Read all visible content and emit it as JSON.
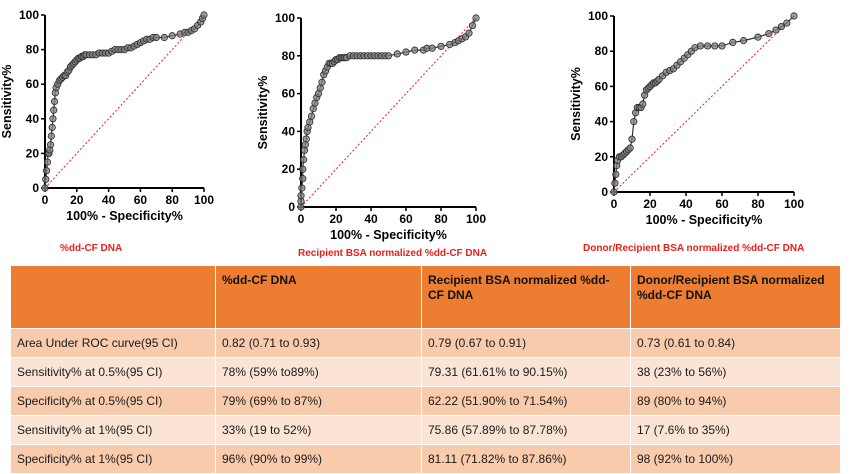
{
  "chart_data": [
    {
      "type": "line",
      "subtype": "roc",
      "title": "",
      "xlabel": "100% - Specificity%",
      "ylabel": "Sensitivity%",
      "xlim": [
        0,
        100
      ],
      "ylim": [
        0,
        100
      ],
      "xticks": [
        0,
        20,
        40,
        60,
        80,
        100
      ],
      "yticks": [
        0,
        20,
        40,
        60,
        80,
        100
      ],
      "reference_line": true,
      "x": [
        0,
        0.5,
        1,
        1.5,
        2,
        2.5,
        3,
        3.5,
        4,
        4.5,
        5,
        5.5,
        6,
        6.5,
        7,
        8,
        9,
        10,
        11,
        12,
        13,
        14,
        15,
        16,
        17,
        18,
        19,
        20,
        21,
        22,
        23,
        24,
        25,
        26,
        28,
        30,
        32,
        34,
        36,
        38,
        40,
        42,
        44,
        46,
        48,
        50,
        52,
        54,
        56,
        58,
        60,
        62,
        64,
        66,
        68,
        70,
        75,
        80,
        85,
        88,
        90,
        92,
        94,
        96,
        98,
        99,
        100
      ],
      "y": [
        0,
        5,
        10,
        15,
        20,
        20,
        22,
        25,
        30,
        35,
        40,
        45,
        50,
        55,
        58,
        60,
        62,
        63,
        64,
        65,
        65,
        67,
        68,
        70,
        71,
        72,
        73,
        74,
        75,
        75,
        76,
        76,
        77,
        77,
        77,
        77,
        77,
        78,
        78,
        78,
        78,
        79,
        80,
        80,
        80,
        80,
        81,
        81,
        82,
        83,
        84,
        85,
        86,
        86,
        87,
        87,
        87,
        88,
        89,
        90,
        90,
        91,
        92,
        94,
        96,
        98,
        100
      ]
    },
    {
      "type": "line",
      "subtype": "roc",
      "title": "",
      "xlabel": "100% - Specificity%",
      "ylabel": "Sensitivity%",
      "xlim": [
        0,
        100
      ],
      "ylim": [
        0,
        100
      ],
      "xticks": [
        0,
        20,
        40,
        60,
        80,
        100
      ],
      "yticks": [
        0,
        20,
        40,
        60,
        80,
        100
      ],
      "reference_line": true,
      "x": [
        0,
        0,
        0,
        0.5,
        1,
        1,
        1.5,
        2,
        2.5,
        3,
        3.5,
        4,
        5,
        6,
        7,
        8,
        9,
        10,
        11,
        12,
        13,
        14,
        15,
        16,
        17,
        18,
        19,
        20,
        21,
        22,
        23,
        24,
        25,
        26,
        28,
        30,
        32,
        34,
        36,
        38,
        40,
        42,
        44,
        46,
        48,
        50,
        55,
        60,
        65,
        70,
        72,
        75,
        80,
        85,
        88,
        90,
        92,
        94,
        96,
        98,
        100
      ],
      "y": [
        0,
        3,
        6,
        10,
        15,
        20,
        25,
        30,
        33,
        36,
        40,
        42,
        45,
        48,
        52,
        55,
        58,
        60,
        63,
        66,
        70,
        72,
        74,
        76,
        76,
        76,
        77,
        78,
        78,
        79,
        79,
        79,
        79,
        79,
        80,
        80,
        80,
        80,
        80,
        80,
        80,
        80,
        80,
        80,
        80,
        80,
        81,
        82,
        83,
        83,
        84,
        84,
        85,
        86,
        87,
        88,
        89,
        90,
        92,
        96,
        100
      ]
    },
    {
      "type": "line",
      "subtype": "roc",
      "title": "",
      "xlabel": "100% - Specificity%",
      "ylabel": "Sensitivity%",
      "xlim": [
        0,
        100
      ],
      "ylim": [
        0,
        100
      ],
      "xticks": [
        0,
        20,
        40,
        60,
        80,
        100
      ],
      "yticks": [
        0,
        20,
        40,
        60,
        80,
        100
      ],
      "reference_line": true,
      "x": [
        0,
        0.5,
        1,
        1.5,
        2,
        3,
        4,
        5,
        6,
        7,
        8,
        9,
        10,
        11,
        12,
        13,
        14,
        15,
        16,
        17,
        18,
        19,
        20,
        21,
        22,
        23,
        24,
        25,
        27,
        29,
        31,
        33,
        35,
        37,
        39,
        41,
        43,
        45,
        48,
        52,
        56,
        60,
        66,
        72,
        80,
        86,
        90,
        93,
        96,
        100
      ],
      "y": [
        0,
        5,
        10,
        15,
        18,
        20,
        20,
        21,
        22,
        23,
        24,
        25,
        30,
        40,
        45,
        48,
        48,
        48,
        50,
        55,
        58,
        59,
        60,
        61,
        62,
        62,
        63,
        64,
        66,
        68,
        69,
        70,
        72,
        74,
        76,
        78,
        80,
        82,
        83,
        83,
        83,
        83,
        85,
        86,
        88,
        90,
        92,
        94,
        96,
        100
      ]
    }
  ],
  "captions": [
    "%dd-CF DNA",
    "Recipient BSA normalized %dd-CF DNA",
    "Donor/Recipient BSA normalized %dd-CF DNA"
  ],
  "table": {
    "headers": [
      "",
      "%dd-CF DNA",
      "Recipient BSA normalized %dd-CF DNA",
      "Donor/Recipient BSA normalized %dd-CF DNA"
    ],
    "rows": [
      [
        "Area Under ROC curve(95 CI)",
        "0.82 (0.71 to 0.93)",
        "0.79 (0.67 to 0.91)",
        "0.73 (0.61 to 0.84)"
      ],
      [
        "Sensitivity% at 0.5%(95 CI)",
        "78% (59% to89%)",
        "79.31 (61.61% to 90.15%)",
        "38 (23% to 56%)"
      ],
      [
        "Specificity% at 0.5%(95 CI)",
        "79% (69% to 87%)",
        "62.22 (51.90% to 71.54%)",
        "89 (80% to 94%)"
      ],
      [
        "Sensitivity% at 1%(95 CI)",
        "33% (19 to 52%)",
        "75.86 (57.89% to 87.78%)",
        "17 (7.6% to 35%)"
      ],
      [
        "Specificity% at 1%(95 CI)",
        "96% (90% to 99%)",
        "81.11 (71.82% to 87.86%)",
        "98 (92% to 100%)"
      ]
    ]
  },
  "colors": {
    "point_fill": "#7f7f7f",
    "point_stroke": "#2b2b2b",
    "reference_line": "#e8201c",
    "caption": "#e8201c",
    "header_bg": "#ed7d31",
    "row_dark": "#f8cbad",
    "row_light": "#fbe4d5"
  }
}
